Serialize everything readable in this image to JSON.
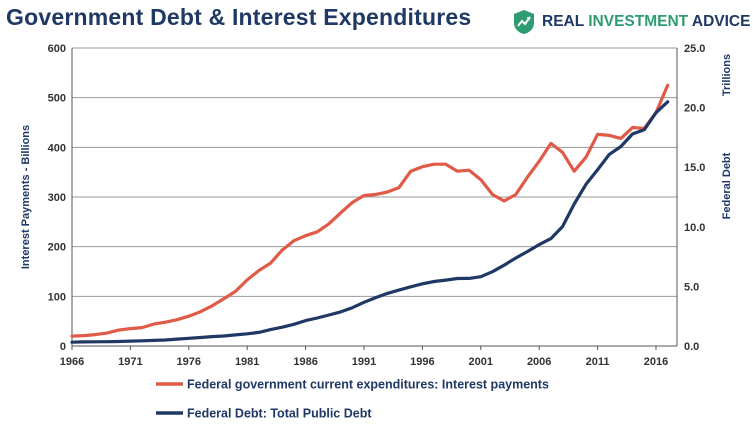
{
  "header": {
    "title": "Government Debt & Interest Expenditures",
    "brand_name": "REAL INVESTMENT ADVICE",
    "brand_words": [
      "REAL",
      "INVESTMENT",
      "ADVICE"
    ],
    "brand_logo_icon": "chart-up-shield-icon",
    "brand_color": "#2e9c72"
  },
  "chart_data": {
    "type": "line",
    "title": "Government Debt & Interest Expenditures",
    "x_ticks": [
      1966,
      1971,
      1976,
      1981,
      1986,
      1991,
      1996,
      2001,
      2006,
      2011,
      2016
    ],
    "xlim": [
      1966,
      2017.8
    ],
    "ylabel": "Interest Payments - Billions",
    "ylim": [
      0,
      600
    ],
    "y_ticks": [
      "0",
      "100",
      "200",
      "300",
      "400",
      "500",
      "600"
    ],
    "y2label_top": "Trillions",
    "y2label": "Federal Debt",
    "y2lim": [
      0,
      25
    ],
    "y2_ticks": [
      "0.0",
      "5.0",
      "10.0",
      "15.0",
      "20.0",
      "25.0"
    ],
    "grid": true,
    "legend_position": "bottom",
    "series": [
      {
        "name": "Federal government current expenditures: Interest payments",
        "axis": "left",
        "color": "#e05a47",
        "x": [
          1966,
          1967,
          1968,
          1969,
          1970,
          1971,
          1972,
          1973,
          1974,
          1975,
          1976,
          1977,
          1978,
          1979,
          1980,
          1981,
          1982,
          1983,
          1984,
          1985,
          1986,
          1987,
          1988,
          1989,
          1990,
          1991,
          1992,
          1993,
          1994,
          1995,
          1996,
          1997,
          1998,
          1999,
          2000,
          2001,
          2002,
          2003,
          2004,
          2005,
          2006,
          2007,
          2008,
          2009,
          2010,
          2011,
          2012,
          2013,
          2014,
          2015,
          2016,
          2017
        ],
        "values": [
          20,
          21,
          23,
          26,
          32,
          35,
          37,
          44,
          48,
          53,
          60,
          69,
          81,
          95,
          110,
          133,
          152,
          167,
          193,
          212,
          222,
          230,
          246,
          268,
          289,
          303,
          305,
          310,
          319,
          352,
          361,
          366,
          366,
          352,
          354,
          335,
          305,
          292,
          305,
          340,
          372,
          408,
          390,
          352,
          380,
          426,
          424,
          418,
          440,
          438,
          470,
          525
        ]
      },
      {
        "name": "Federal Debt: Total Public Debt",
        "axis": "right",
        "color": "#1f3864",
        "x": [
          1966,
          1967,
          1968,
          1969,
          1970,
          1971,
          1972,
          1973,
          1974,
          1975,
          1976,
          1977,
          1978,
          1979,
          1980,
          1981,
          1982,
          1983,
          1984,
          1985,
          1986,
          1987,
          1988,
          1989,
          1990,
          1991,
          1992,
          1993,
          1994,
          1995,
          1996,
          1997,
          1998,
          1999,
          2000,
          2001,
          2002,
          2003,
          2004,
          2005,
          2006,
          2007,
          2008,
          2009,
          2010,
          2011,
          2012,
          2013,
          2014,
          2015,
          2016,
          2017
        ],
        "values": [
          0.32,
          0.34,
          0.35,
          0.36,
          0.38,
          0.41,
          0.44,
          0.47,
          0.5,
          0.58,
          0.65,
          0.71,
          0.79,
          0.84,
          0.93,
          1.02,
          1.14,
          1.38,
          1.58,
          1.82,
          2.13,
          2.35,
          2.6,
          2.86,
          3.21,
          3.67,
          4.06,
          4.41,
          4.69,
          4.97,
          5.22,
          5.41,
          5.53,
          5.66,
          5.67,
          5.81,
          6.23,
          6.78,
          7.38,
          7.93,
          8.51,
          9.01,
          10.02,
          11.91,
          13.56,
          14.79,
          16.07,
          16.74,
          17.79,
          18.15,
          19.57,
          20.49
        ]
      }
    ]
  }
}
